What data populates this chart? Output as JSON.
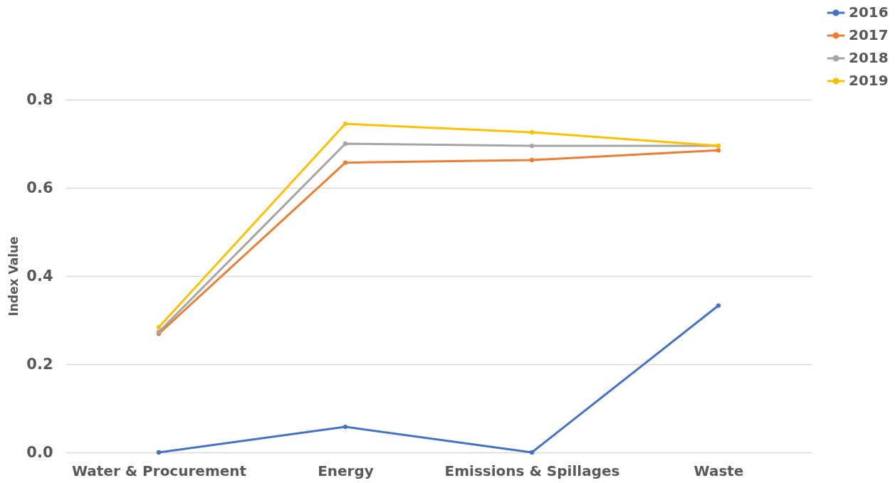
{
  "chart_data": {
    "type": "line",
    "ylabel": "Index Value",
    "categories": [
      "Water & Procurement",
      "Energy",
      "Emissions & Spillages",
      "Waste"
    ],
    "series": [
      {
        "name": "2016",
        "color": "#4472c4",
        "values": [
          0.0,
          0.058,
          0.0,
          0.333
        ]
      },
      {
        "name": "2017",
        "color": "#ed7d31",
        "values": [
          0.269,
          0.657,
          0.663,
          0.685
        ]
      },
      {
        "name": "2018",
        "color": "#a5a5a5",
        "values": [
          0.273,
          0.7,
          0.695,
          0.695
        ]
      },
      {
        "name": "2019",
        "color": "#ffc000",
        "values": [
          0.284,
          0.745,
          0.726,
          0.695
        ]
      }
    ],
    "ylim": [
      0,
      0.8
    ],
    "yticks": [
      {
        "value": 0,
        "label": "0.0"
      },
      0.2,
      0.4,
      0.6,
      0.8
    ],
    "grid": "y",
    "legend": "top right",
    "marker": "circle",
    "line_style": "solid"
  }
}
